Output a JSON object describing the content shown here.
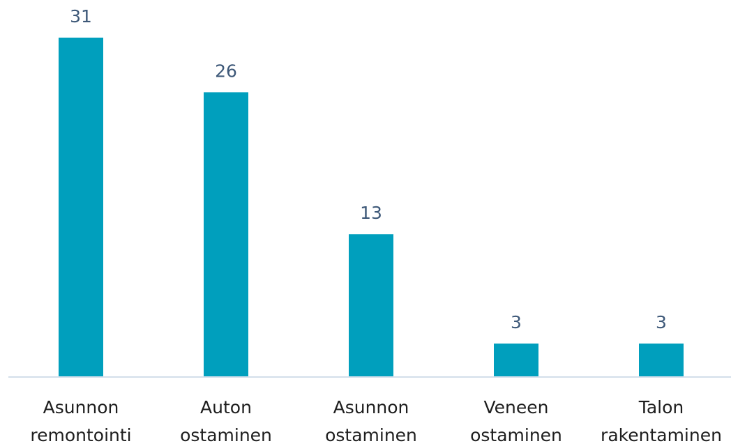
{
  "chart_data": {
    "type": "bar",
    "categories": [
      "Asunnon remontointi",
      "Auton ostaminen",
      "Asunnon ostaminen",
      "Veneen ostaminen",
      "Talon rakentaminen"
    ],
    "values": [
      31,
      26,
      13,
      3,
      3
    ],
    "color": "#009fbd"
  }
}
